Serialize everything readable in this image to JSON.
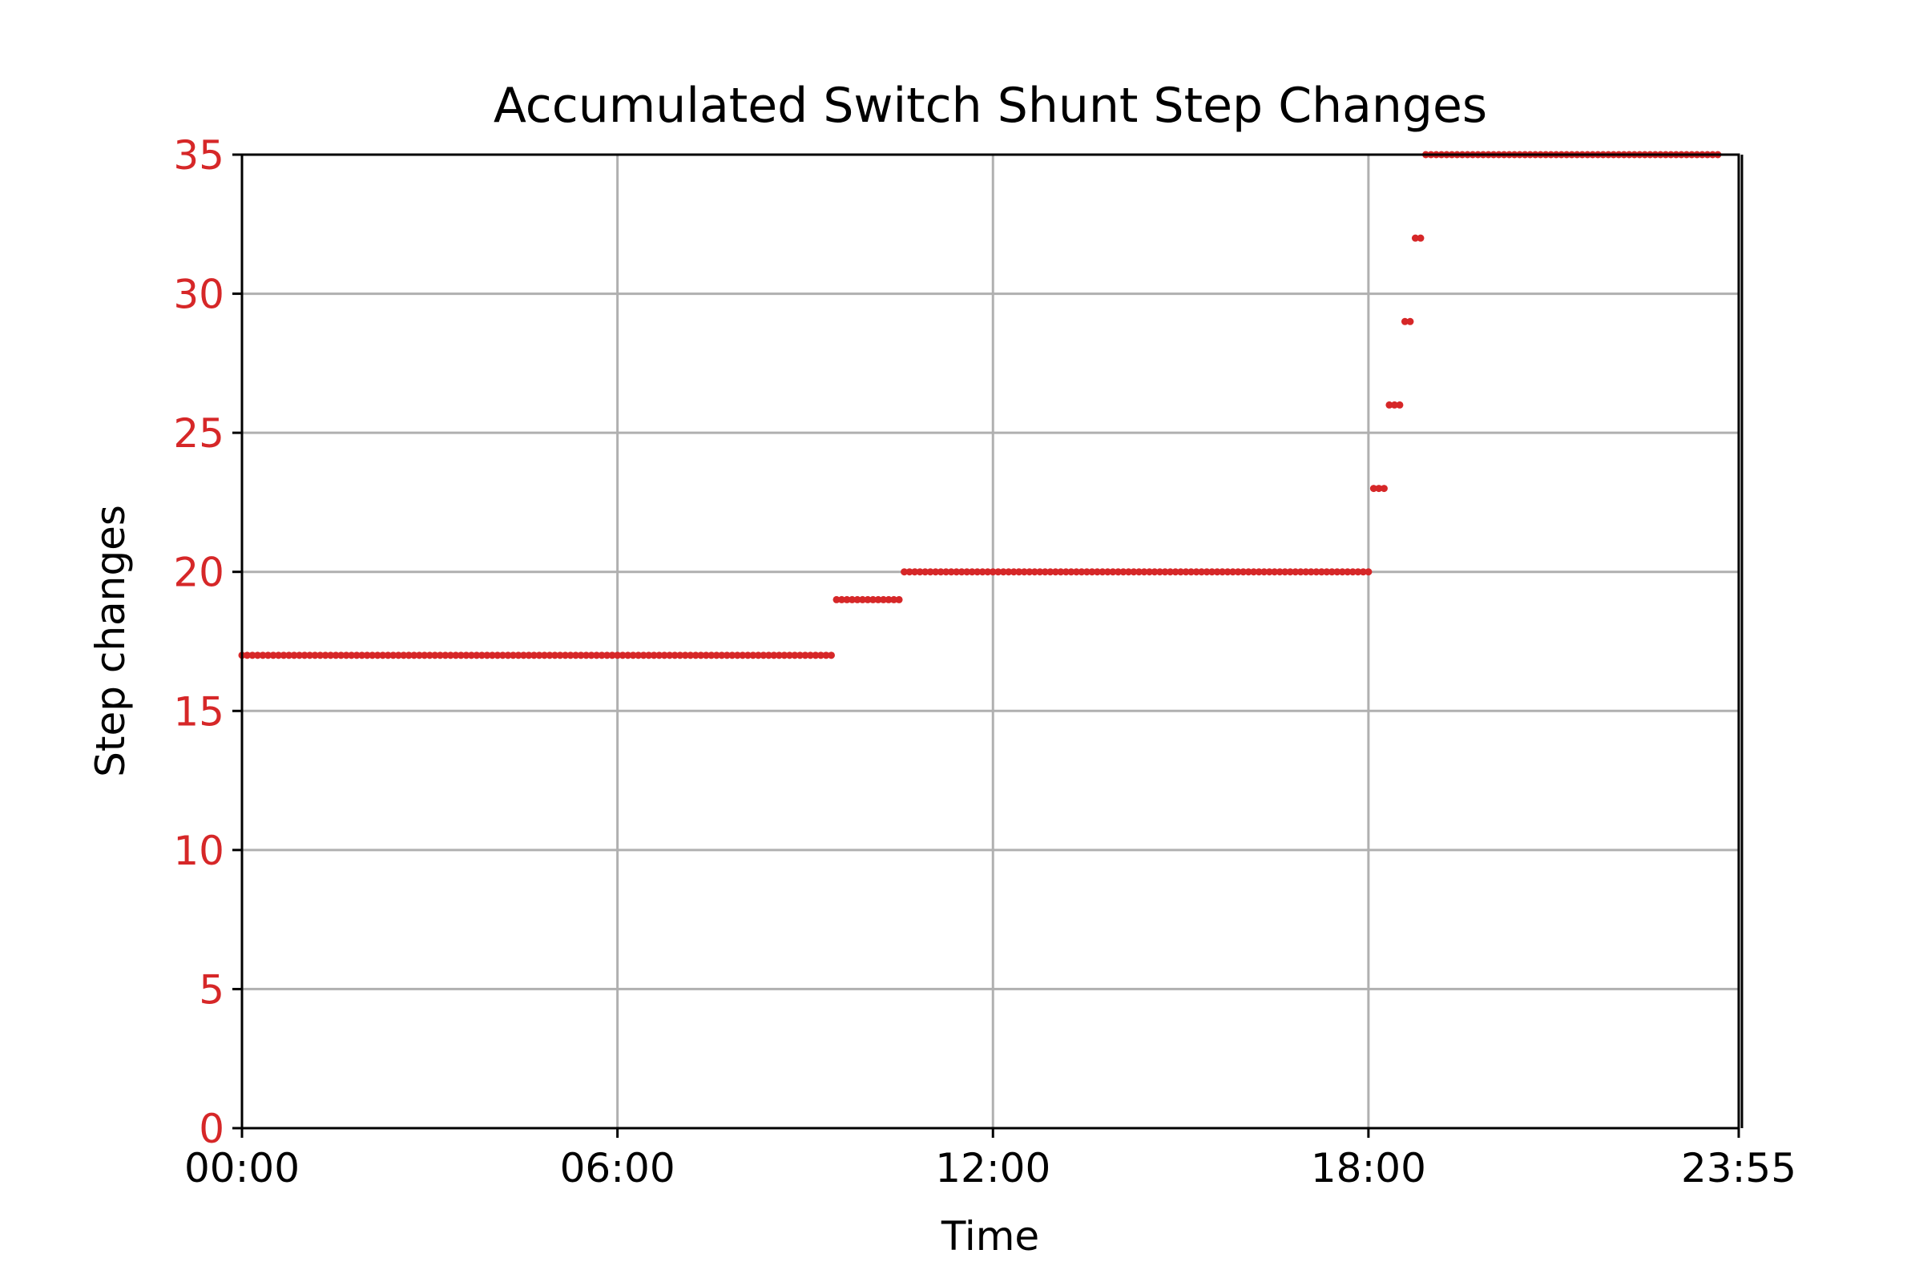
{
  "chart_data": {
    "type": "scatter",
    "title": "Accumulated Switch Shunt Step Changes",
    "xlabel": "Time",
    "ylabel": "Step changes",
    "x_unit": "HH:MM",
    "xlim": [
      "00:00",
      "23:55"
    ],
    "ylim": [
      0,
      35
    ],
    "x_ticks": [
      "00:00",
      "06:00",
      "12:00",
      "18:00",
      "23:55"
    ],
    "y_ticks": [
      0,
      5,
      10,
      15,
      20,
      25,
      30,
      35
    ],
    "grid": true,
    "series": [
      {
        "color": "#d62728",
        "marker_spacing_minutes": 5,
        "segments": [
          {
            "start": "00:00",
            "end": "09:25",
            "value": 17
          },
          {
            "start": "09:30",
            "end": "10:30",
            "value": 19
          },
          {
            "start": "10:35",
            "end": "18:00",
            "value": 20
          },
          {
            "start": "18:05",
            "end": "18:15",
            "value": 23
          },
          {
            "start": "18:20",
            "end": "18:30",
            "value": 26
          },
          {
            "start": "18:35",
            "end": "18:40",
            "value": 29
          },
          {
            "start": "18:45",
            "end": "18:50",
            "value": 32
          },
          {
            "start": "18:55",
            "end": "23:35",
            "value": 35
          }
        ]
      }
    ],
    "colors": {
      "series": "#d62728",
      "y_tick_labels": "#d62728",
      "grid": "#b0b0b0",
      "axes": "#000000"
    }
  }
}
